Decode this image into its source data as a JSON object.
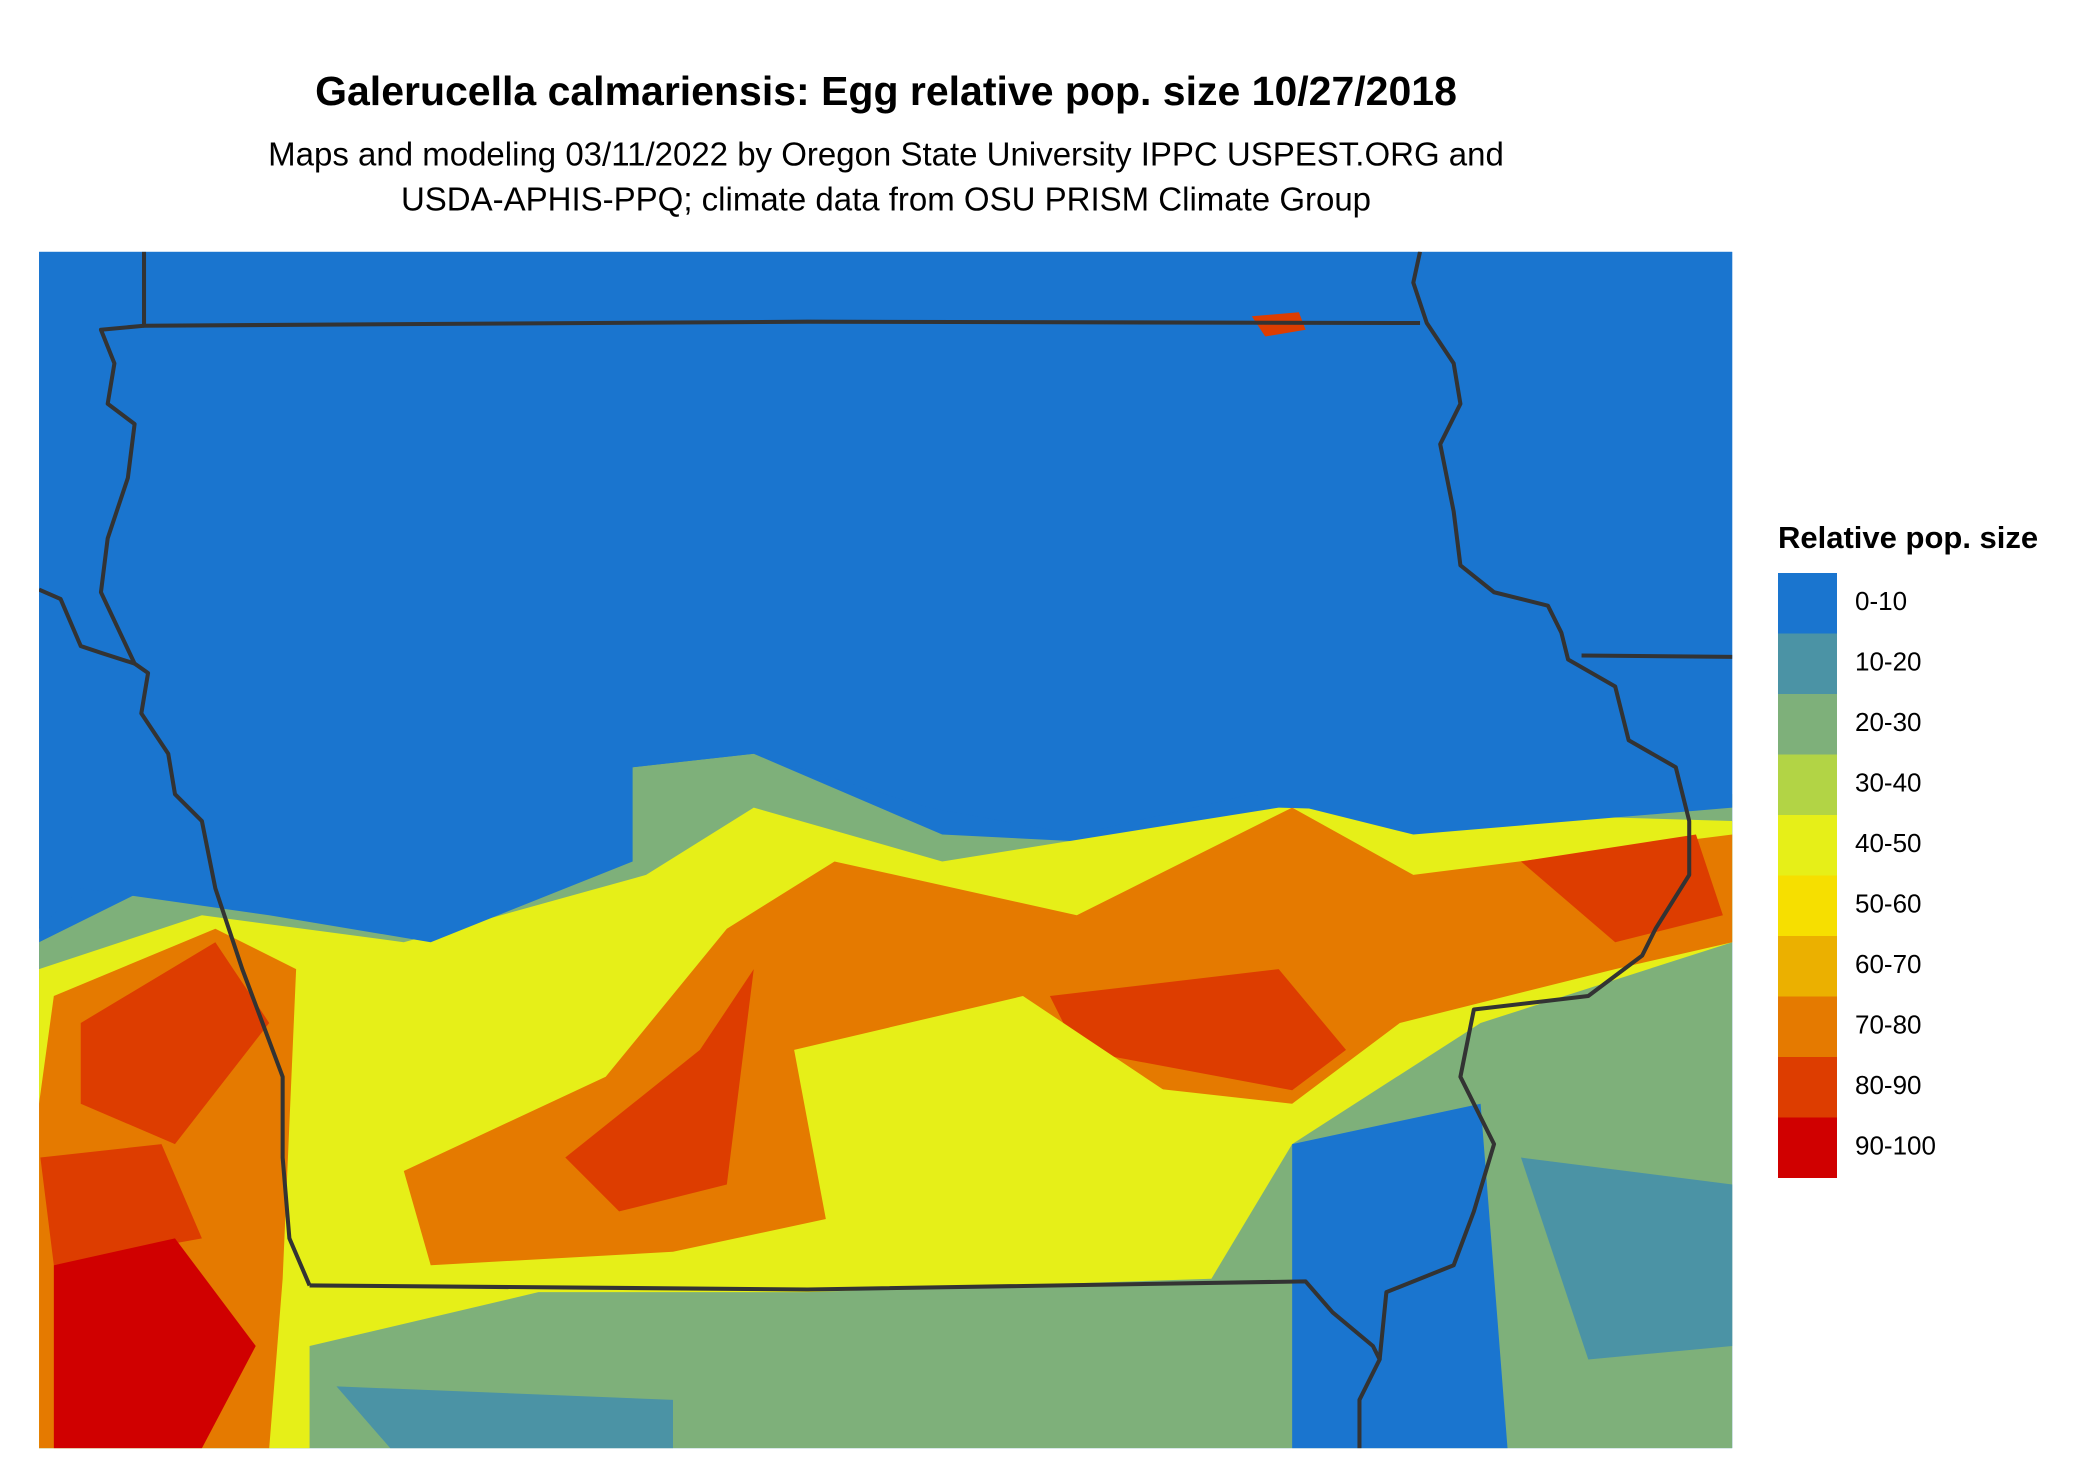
{
  "header": {
    "title": "Galerucella calmariensis: Egg relative pop. size 10/27/2018",
    "subtitle": [
      "Maps and modeling 03/11/2022 by Oregon State University IPPC USPEST.ORG and",
      "USDA-APHIS-PPQ; climate data from OSU PRISM Climate Group"
    ]
  },
  "legend": {
    "title": "Relative pop. size",
    "entries": [
      {
        "label": "0-10",
        "color": "#1a75cf"
      },
      {
        "label": "10-20",
        "color": "#4b93a5"
      },
      {
        "label": "20-30",
        "color": "#7eb07a"
      },
      {
        "label": "30-40",
        "color": "#b2d445"
      },
      {
        "label": "40-50",
        "color": "#e6ef18"
      },
      {
        "label": "50-60",
        "color": "#f6df00"
      },
      {
        "label": "60-70",
        "color": "#ebb000"
      },
      {
        "label": "70-80",
        "color": "#e57a00"
      },
      {
        "label": "80-90",
        "color": "#dd3d00"
      },
      {
        "label": "90-100",
        "color": "#d00000"
      }
    ]
  }
}
